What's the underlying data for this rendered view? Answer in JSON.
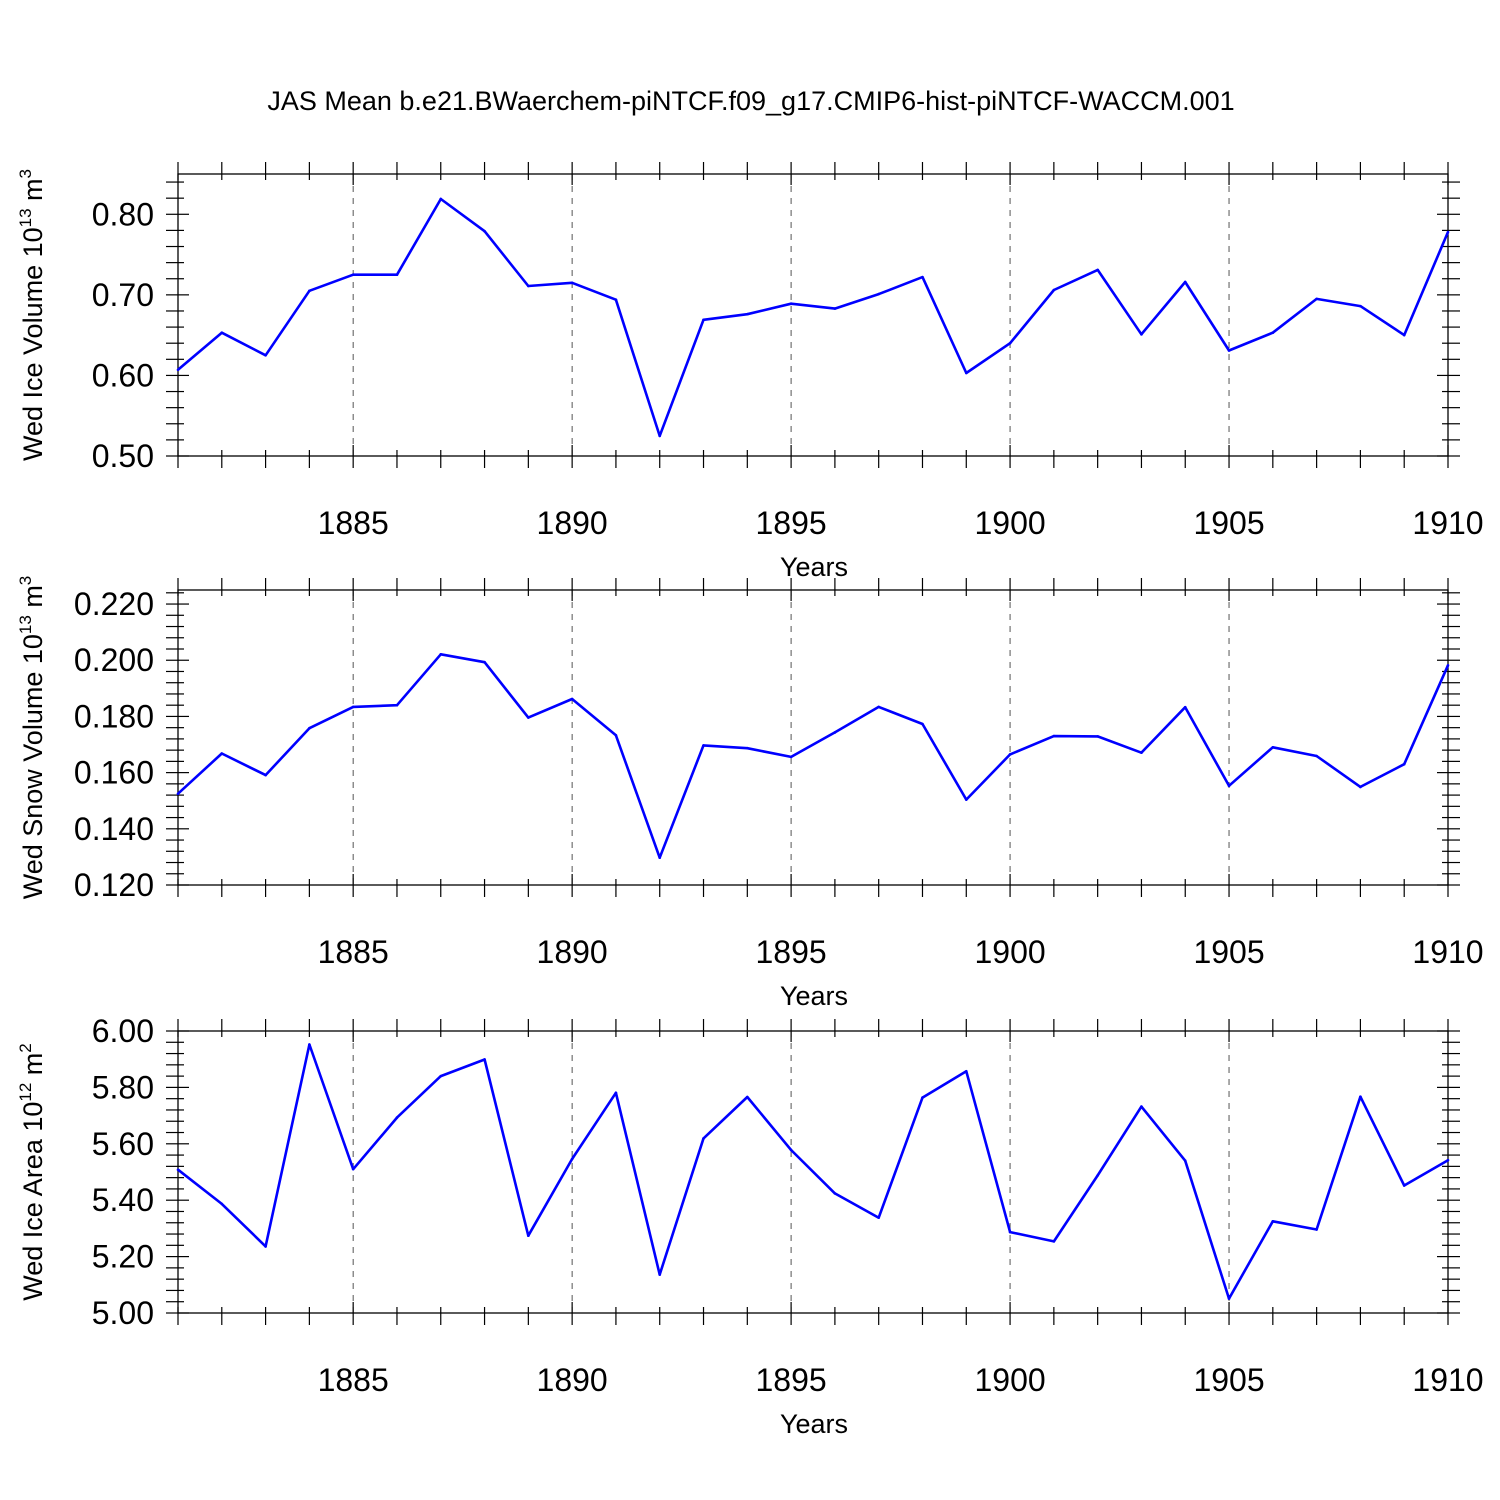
{
  "title": "JAS Mean b.e21.BWaerchem-piNTCF.f09_g17.CMIP6-hist-piNTCF-WACCM.001",
  "chart_data": [
    {
      "type": "line",
      "title": "JAS Mean b.e21.BWaerchem-piNTCF.f09_g17.CMIP6-hist-piNTCF-WACCM.001",
      "xlabel": "Years",
      "ylabel": "Wed Ice Volume 10",
      "ylabel_exp": "13",
      "ylabel_unit": " m",
      "ylabel_unit_exp": "3",
      "xlim": [
        1881,
        1910
      ],
      "ylim": [
        0.5,
        0.85
      ],
      "x_ticks": [
        1885,
        1890,
        1895,
        1900,
        1905,
        1910
      ],
      "x_tick_labels": [
        "1885",
        "1890",
        "1895",
        "1900",
        "1905",
        "1910"
      ],
      "y_ticks": [
        0.5,
        0.6,
        0.7,
        0.8
      ],
      "y_tick_labels": [
        "0.50",
        "0.60",
        "0.70",
        "0.80"
      ],
      "grid": "vertical dashed at major x ticks",
      "line_color": "#0000ff",
      "x": [
        1881,
        1882,
        1883,
        1884,
        1885,
        1886,
        1887,
        1888,
        1889,
        1890,
        1891,
        1892,
        1893,
        1894,
        1895,
        1896,
        1897,
        1898,
        1899,
        1900,
        1901,
        1902,
        1903,
        1904,
        1905,
        1906,
        1907,
        1908,
        1909,
        1910
      ],
      "y": [
        0.607,
        0.653,
        0.625,
        0.705,
        0.725,
        0.725,
        0.819,
        0.779,
        0.711,
        0.715,
        0.694,
        0.525,
        0.669,
        0.676,
        0.689,
        0.683,
        0.701,
        0.722,
        0.603,
        0.64,
        0.706,
        0.731,
        0.651,
        0.716,
        0.631,
        0.653,
        0.695,
        0.686,
        0.65,
        0.778
      ]
    },
    {
      "type": "line",
      "xlabel": "Years",
      "ylabel": "Wed Snow Volume 10",
      "ylabel_exp": "13",
      "ylabel_unit": " m",
      "ylabel_unit_exp": "3",
      "xlim": [
        1881,
        1910
      ],
      "ylim": [
        0.12,
        0.225
      ],
      "x_ticks": [
        1885,
        1890,
        1895,
        1900,
        1905,
        1910
      ],
      "x_tick_labels": [
        "1885",
        "1890",
        "1895",
        "1900",
        "1905",
        "1910"
      ],
      "y_ticks": [
        0.12,
        0.14,
        0.16,
        0.18,
        0.2,
        0.22
      ],
      "y_tick_labels": [
        "0.120",
        "0.140",
        "0.160",
        "0.180",
        "0.200",
        "0.220"
      ],
      "grid": "vertical dashed at major x ticks",
      "line_color": "#0000ff",
      "x": [
        1881,
        1882,
        1883,
        1884,
        1885,
        1886,
        1887,
        1888,
        1889,
        1890,
        1891,
        1892,
        1893,
        1894,
        1895,
        1896,
        1897,
        1898,
        1899,
        1900,
        1901,
        1902,
        1903,
        1904,
        1905,
        1906,
        1907,
        1908,
        1909,
        1910
      ],
      "y": [
        0.1525,
        0.1668,
        0.1591,
        0.1758,
        0.1834,
        0.184,
        0.2021,
        0.1993,
        0.1796,
        0.1862,
        0.1733,
        0.1297,
        0.1697,
        0.1687,
        0.1656,
        0.1743,
        0.1834,
        0.1773,
        0.1504,
        0.1665,
        0.173,
        0.1729,
        0.1671,
        0.1833,
        0.1553,
        0.169,
        0.1659,
        0.1549,
        0.163,
        0.1982
      ]
    },
    {
      "type": "line",
      "xlabel": "Years",
      "ylabel": "Wed Ice Area 10",
      "ylabel_exp": "12",
      "ylabel_unit": " m",
      "ylabel_unit_exp": "2",
      "xlim": [
        1881,
        1910
      ],
      "ylim": [
        5.0,
        6.0
      ],
      "x_ticks": [
        1885,
        1890,
        1895,
        1900,
        1905,
        1910
      ],
      "x_tick_labels": [
        "1885",
        "1890",
        "1895",
        "1900",
        "1905",
        "1910"
      ],
      "y_ticks": [
        5.0,
        5.2,
        5.4,
        5.6,
        5.8,
        6.0
      ],
      "y_tick_labels": [
        "5.00",
        "5.20",
        "5.40",
        "5.60",
        "5.80",
        "6.00"
      ],
      "grid": "vertical dashed at major x ticks",
      "line_color": "#0000ff",
      "x": [
        1881,
        1882,
        1883,
        1884,
        1885,
        1886,
        1887,
        1888,
        1889,
        1890,
        1891,
        1892,
        1893,
        1894,
        1895,
        1896,
        1897,
        1898,
        1899,
        1900,
        1901,
        1902,
        1903,
        1904,
        1905,
        1906,
        1907,
        1908,
        1909,
        1910
      ],
      "y": [
        5.508,
        5.387,
        5.236,
        5.952,
        5.51,
        5.693,
        5.84,
        5.899,
        5.274,
        5.546,
        5.781,
        5.136,
        5.619,
        5.766,
        5.578,
        5.424,
        5.338,
        5.764,
        5.857,
        5.287,
        5.254,
        5.488,
        5.732,
        5.54,
        5.051,
        5.325,
        5.296,
        5.767,
        5.452,
        5.542
      ]
    }
  ]
}
